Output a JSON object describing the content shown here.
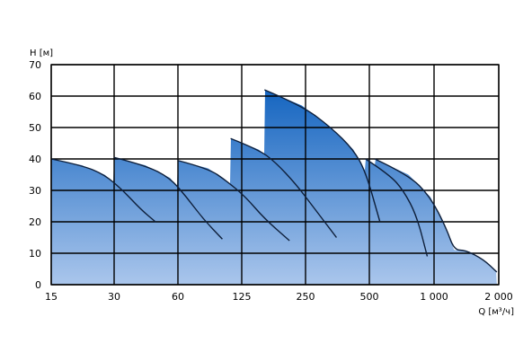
{
  "chart_data": {
    "type": "area",
    "ylabel": "H [м]",
    "xlabel": "Q [м³/ч]",
    "ylim": [
      0,
      70
    ],
    "yticks": [
      "0",
      "10",
      "20",
      "30",
      "40",
      "50",
      "60",
      "70"
    ],
    "xtick_labels": [
      "15",
      "30",
      "60",
      "125",
      "250",
      "500",
      "1 000",
      "2 000"
    ],
    "x_scale": "log",
    "grid": true,
    "colors": {
      "fill_top": "#1565c0",
      "fill_bottom": "#aac6ec",
      "curve": "#0e1f3a",
      "grid": "#000000"
    },
    "series": [
      {
        "points": [
          [
            15,
            40
          ],
          [
            21,
            38
          ],
          [
            27,
            35
          ],
          [
            33,
            30
          ],
          [
            40,
            24
          ],
          [
            47,
            20
          ]
        ]
      },
      {
        "points": [
          [
            30,
            40.5
          ],
          [
            42,
            38
          ],
          [
            55,
            34
          ],
          [
            66,
            28
          ],
          [
            80,
            21
          ],
          [
            100,
            14.5
          ]
        ]
      },
      {
        "points": [
          [
            60,
            39.5
          ],
          [
            85,
            37
          ],
          [
            105,
            33
          ],
          [
            130,
            28
          ],
          [
            160,
            21
          ],
          [
            210,
            14
          ]
        ]
      },
      {
        "points": [
          [
            110,
            46.5
          ],
          [
            150,
            43
          ],
          [
            180,
            39
          ],
          [
            225,
            32
          ],
          [
            270,
            25
          ],
          [
            350,
            15
          ]
        ]
      },
      {
        "points": [
          [
            160,
            62
          ],
          [
            240,
            57
          ],
          [
            330,
            50
          ],
          [
            420,
            43
          ],
          [
            480,
            36
          ],
          [
            560,
            20
          ]
        ]
      },
      {
        "points": [
          [
            480,
            40
          ],
          [
            620,
            35
          ],
          [
            720,
            30
          ],
          [
            830,
            22
          ],
          [
            930,
            9
          ]
        ]
      },
      {
        "points": [
          [
            530,
            40
          ],
          [
            760,
            35
          ],
          [
            960,
            28
          ],
          [
            1140,
            18
          ],
          [
            1240,
            11
          ],
          [
            1400,
            11
          ],
          [
            1700,
            8
          ],
          [
            1960,
            4
          ]
        ]
      }
    ]
  }
}
